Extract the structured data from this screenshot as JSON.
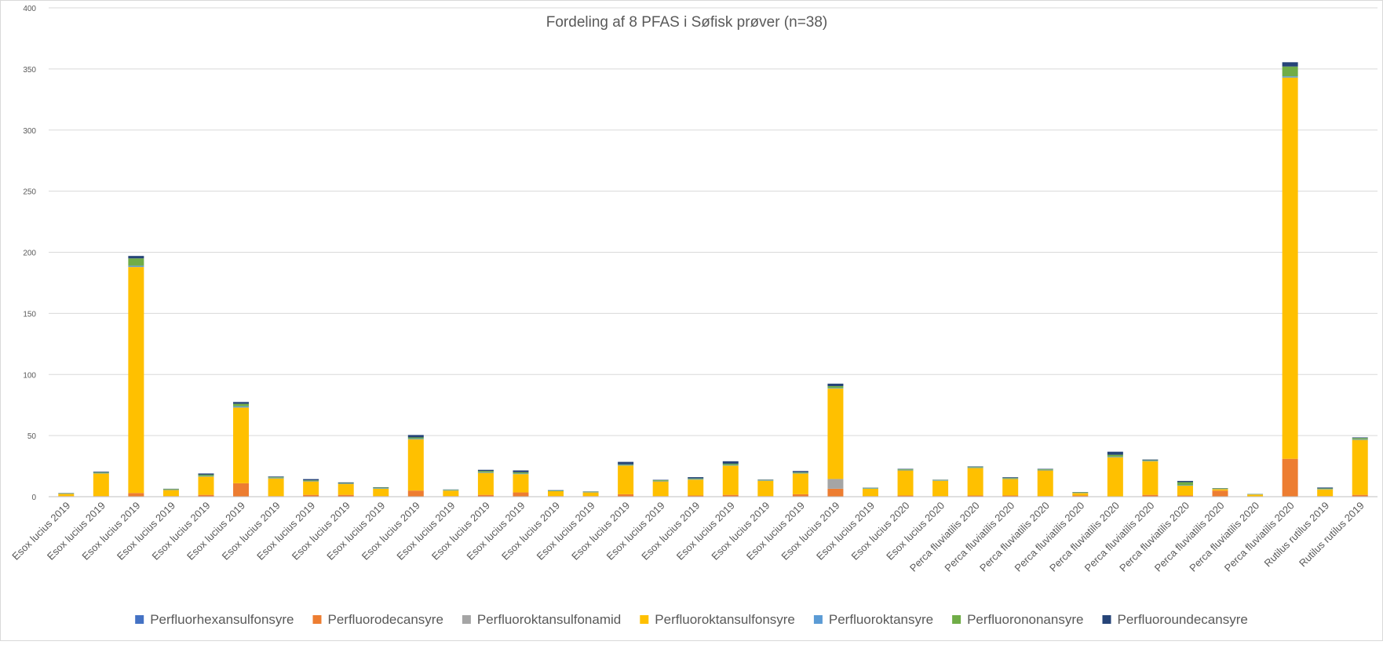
{
  "chart_data": {
    "type": "bar",
    "stacked": true,
    "title": "Fordeling af 8 PFAS i Søfisk prøver (n=38)",
    "xlabel": "",
    "ylabel": "",
    "ylim": [
      0,
      400
    ],
    "y_ticks": [
      0,
      50,
      100,
      150,
      200,
      250,
      300,
      350,
      400
    ],
    "grid": true,
    "legend_position": "bottom",
    "categories": [
      "Esox lucius 2019",
      "Esox lucius 2019",
      "Esox lucius 2019",
      "Esox lucius 2019",
      "Esox lucius 2019",
      "Esox lucius 2019",
      "Esox lucius 2019",
      "Esox lucius 2019",
      "Esox lucius 2019",
      "Esox lucius 2019",
      "Esox lucius 2019",
      "Esox lucius 2019",
      "Esox lucius 2019",
      "Esox lucius 2019",
      "Esox lucius 2019",
      "Esox lucius 2019",
      "Esox lucius 2019",
      "Esox lucius 2019",
      "Esox lucius 2019",
      "Esox lucius 2019",
      "Esox lucius 2019",
      "Esox lucius 2019",
      "Esox lucius 2019",
      "Esox lucius 2019",
      "Esox lucius 2020",
      "Esox lucius 2020",
      "Perca fluviatilis 2020",
      "Perca fluviatilis 2020",
      "Perca fluviatilis 2020",
      "Perca fluviatilis 2020",
      "Perca fluviatilis 2020",
      "Perca fluviatilis 2020",
      "Perca fluviatilis 2020",
      "Perca fluviatilis 2020",
      "Perca fluviatilis 2020",
      "Perca fluviatilis 2020",
      "Rutilus rutilus 2019",
      "Rutilus rutilus 2019"
    ],
    "series": [
      {
        "name": "Perfluorhexansulfonsyre",
        "color": "#4472c4",
        "values": [
          0,
          0,
          0,
          0,
          0,
          0,
          0,
          0,
          0,
          0,
          0,
          0,
          0,
          0,
          0,
          0,
          0,
          0,
          0,
          0,
          0,
          0,
          0,
          0,
          0,
          0,
          0,
          0,
          0,
          0,
          0,
          0,
          0,
          0,
          0,
          0,
          0,
          0
        ]
      },
      {
        "name": "Perfluorodecansyre",
        "color": "#ed7d31",
        "values": [
          0.5,
          0.5,
          3,
          0.5,
          1.5,
          11,
          0.5,
          1.5,
          1.5,
          0.5,
          5,
          0.5,
          1.5,
          3.5,
          0.5,
          0.5,
          2,
          0.5,
          1,
          1.5,
          0.5,
          2,
          6.5,
          0.5,
          1,
          0.5,
          1,
          1,
          0.5,
          1,
          0.3,
          1.5,
          1,
          5,
          0.3,
          31,
          0.5,
          1.5
        ]
      },
      {
        "name": "Perfluoroktansulfonamid",
        "color": "#a5a5a5",
        "values": [
          0,
          0,
          0,
          0,
          0,
          0,
          0,
          0,
          0,
          0,
          0,
          0,
          0,
          0,
          0,
          0,
          0,
          0,
          0,
          0,
          0,
          0,
          8,
          0,
          0,
          0,
          0,
          0,
          0,
          0,
          0,
          0,
          0,
          0,
          0,
          0,
          0,
          0
        ]
      },
      {
        "name": "Perfluoroktansulfonsyre",
        "color": "#ffc000",
        "values": [
          1.8,
          18.5,
          185,
          5,
          15,
          62,
          14.5,
          11,
          9,
          6,
          42,
          4.5,
          18,
          15,
          4,
          3,
          23.5,
          12,
          13,
          24,
          12.5,
          17,
          74,
          6,
          20.5,
          12.5,
          22.5,
          13.5,
          21,
          2,
          32,
          27.5,
          8,
          1.2,
          1.5,
          312,
          5.5,
          45
        ]
      },
      {
        "name": "Perfluoroktansyre",
        "color": "#5b9bd5",
        "values": [
          0.2,
          0.5,
          1,
          0.3,
          0.5,
          1,
          0.5,
          0.4,
          0.4,
          0.4,
          0.5,
          0.3,
          0.5,
          0.5,
          0.3,
          0.3,
          0.5,
          0.4,
          0.5,
          0.5,
          0.3,
          0.5,
          0.5,
          0.3,
          0.5,
          0.3,
          0.5,
          0.3,
          0.5,
          0.2,
          0.5,
          0.4,
          0.4,
          0.2,
          0.2,
          1,
          0.3,
          0.5
        ]
      },
      {
        "name": "Perfluorononansyre",
        "color": "#70ad47",
        "values": [
          0.3,
          0.5,
          6,
          0.5,
          1,
          2,
          0.5,
          0.5,
          0.3,
          0.5,
          1,
          0.4,
          1,
          1,
          0.4,
          0.3,
          0.5,
          0.6,
          0.5,
          1,
          0.4,
          0.5,
          1.5,
          0.4,
          0.5,
          0.4,
          0.5,
          0.5,
          0.5,
          0.4,
          1.5,
          0.5,
          2.5,
          0.4,
          0.2,
          8,
          0.5,
          1
        ]
      },
      {
        "name": "Perfluoroundecansyre",
        "color": "#264478",
        "values": [
          0.2,
          0.5,
          2,
          0.2,
          1,
          1.5,
          0.5,
          1,
          0.5,
          0.3,
          2,
          0.2,
          1,
          1.5,
          0.2,
          0.2,
          2,
          0.3,
          1,
          2,
          0.3,
          1,
          2,
          0.2,
          0.3,
          0.2,
          0.3,
          0.6,
          0.3,
          0.2,
          2.5,
          0.5,
          1,
          0.2,
          0.1,
          3.5,
          0.7,
          0.5
        ]
      }
    ]
  }
}
